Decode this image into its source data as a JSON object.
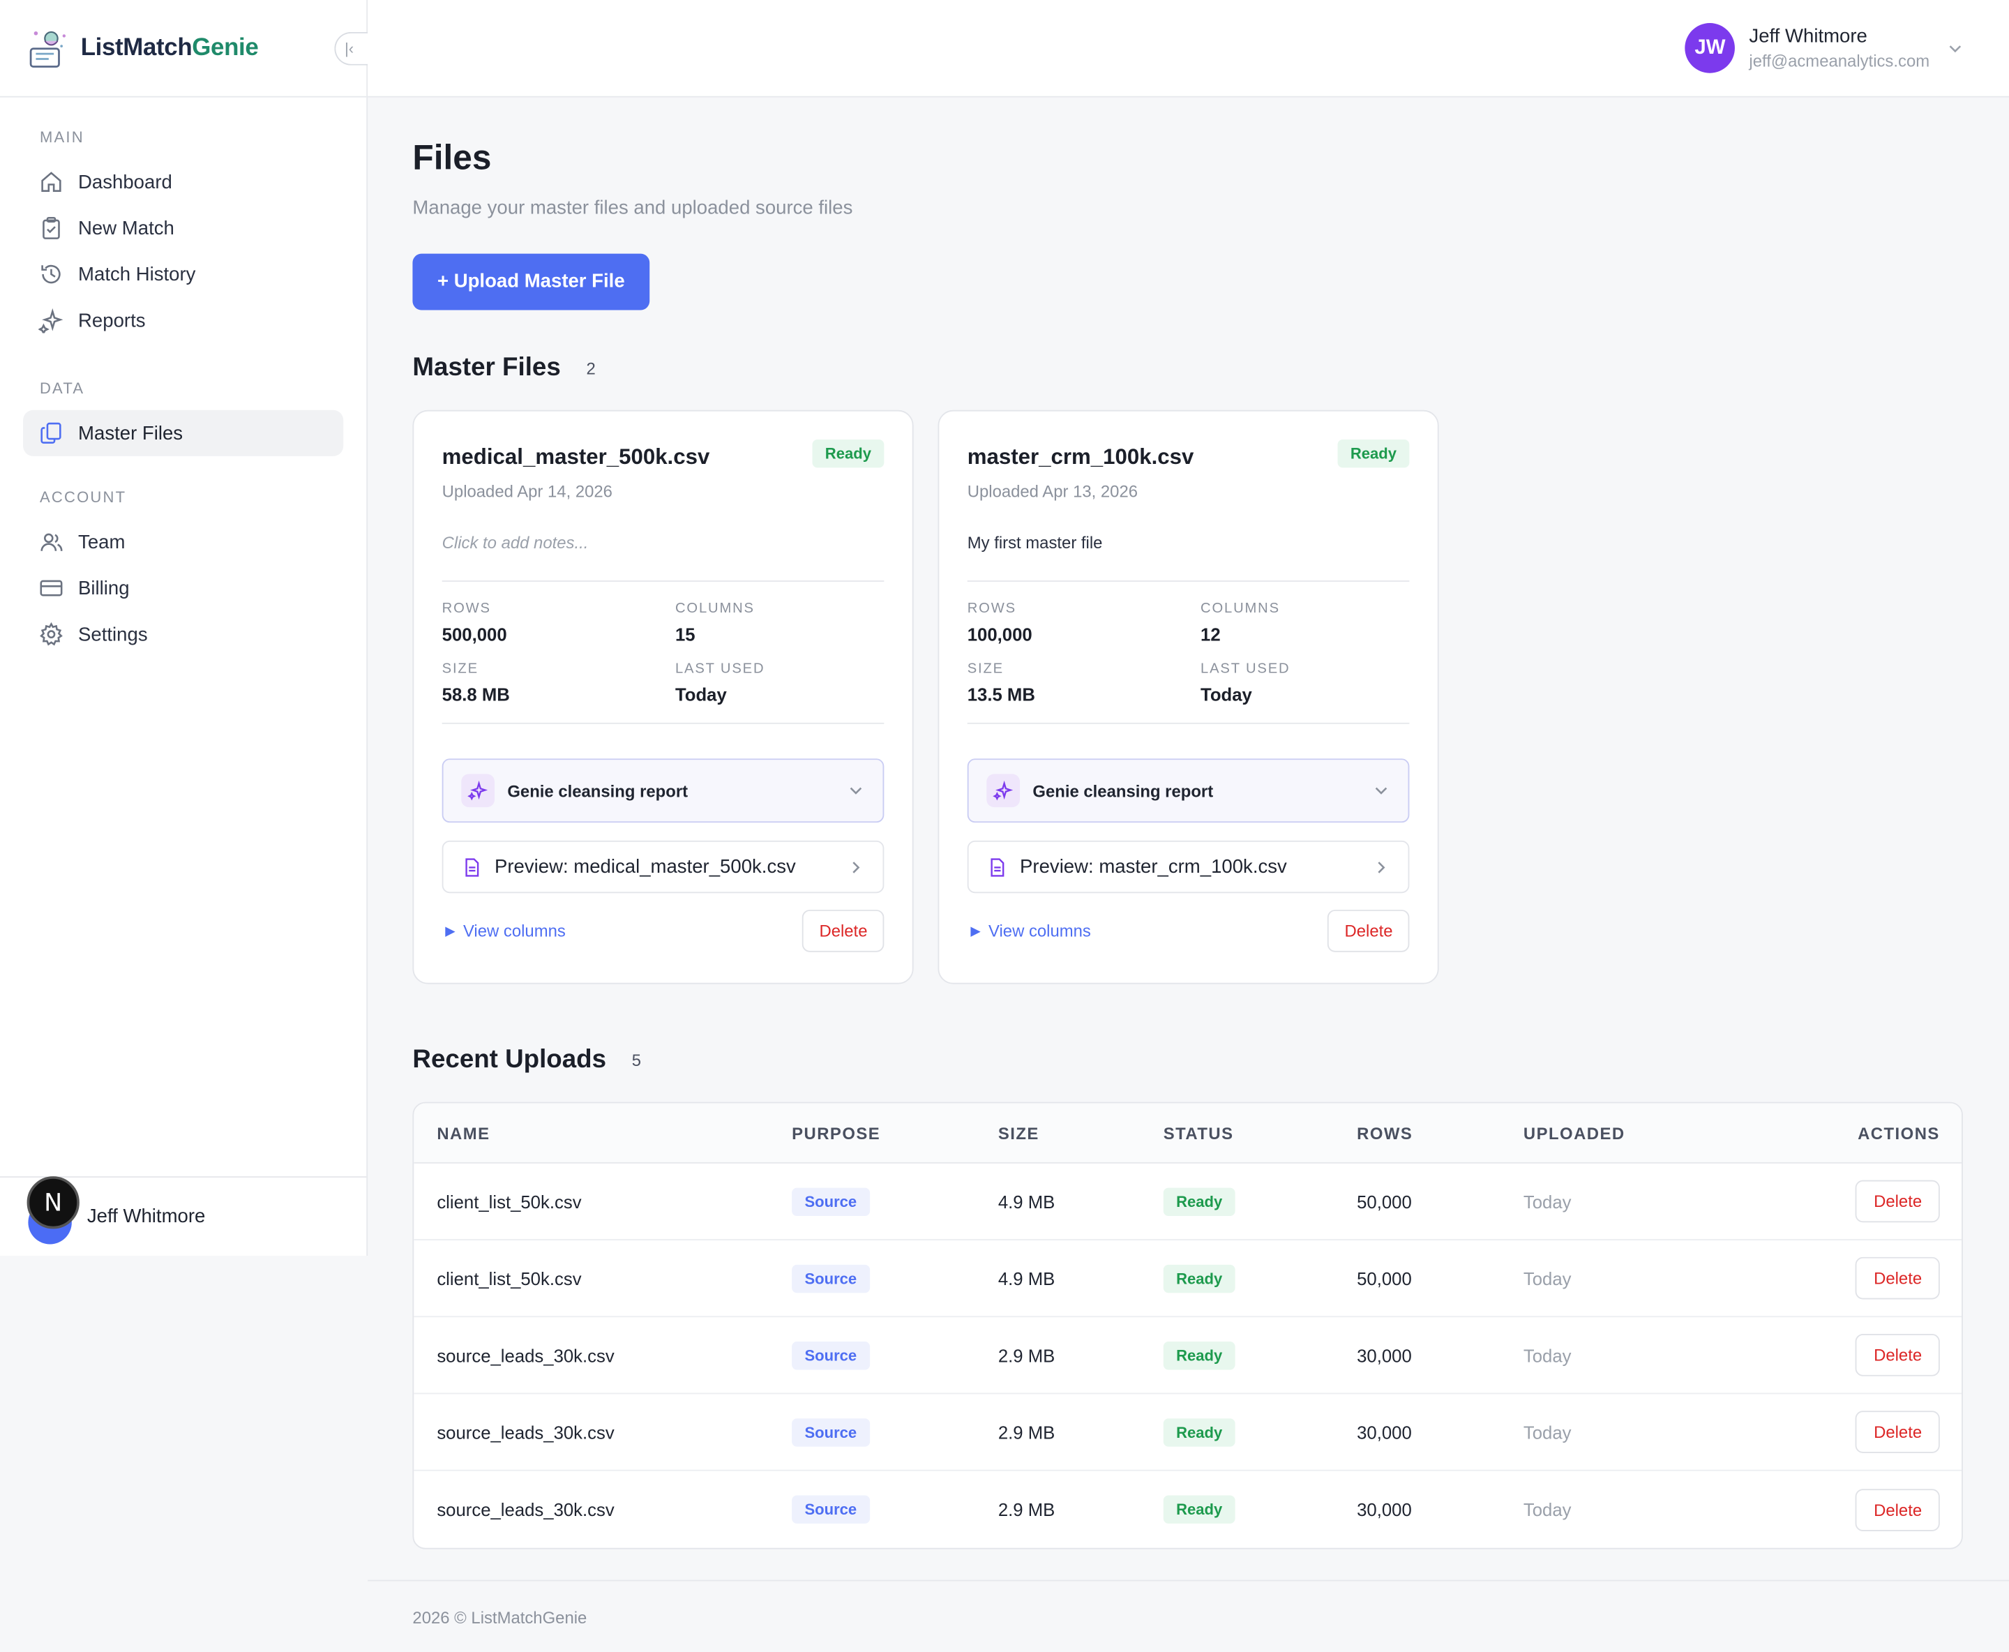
{
  "brand": {
    "name_main": "ListMatch",
    "name_accent": "Genie",
    "collapse_icon": "chevron-left-bar-icon"
  },
  "sidebar": {
    "sections": [
      {
        "heading": "MAIN",
        "items": [
          {
            "label": "Dashboard",
            "icon": "home-icon"
          },
          {
            "label": "New Match",
            "icon": "clipboard-check-icon"
          },
          {
            "label": "Match History",
            "icon": "history-icon"
          },
          {
            "label": "Reports",
            "icon": "sparkles-icon"
          }
        ]
      },
      {
        "heading": "DATA",
        "items": [
          {
            "label": "Master Files",
            "icon": "files-icon",
            "active": true
          }
        ]
      },
      {
        "heading": "ACCOUNT",
        "items": [
          {
            "label": "Team",
            "icon": "users-icon"
          },
          {
            "label": "Billing",
            "icon": "credit-card-icon"
          },
          {
            "label": "Settings",
            "icon": "gear-icon"
          }
        ]
      }
    ],
    "user_name": "Jeff Whitmore",
    "n_badge": "N"
  },
  "topbar": {
    "initials": "JW",
    "user_name": "Jeff Whitmore",
    "user_email": "jeff@acmeanalytics.com",
    "avatar_color": "#7c3aed"
  },
  "page": {
    "title": "Files",
    "subtitle": "Manage your master files and uploaded source files",
    "upload_button": "+ Upload Master File"
  },
  "master_files": {
    "heading": "Master Files",
    "count": "2",
    "cards": [
      {
        "name": "medical_master_500k.csv",
        "status": "Ready",
        "uploaded": "Uploaded Apr 14, 2026",
        "notes": "Click to add notes...",
        "notes_placeholder": true,
        "rows_label": "ROWS",
        "rows": "500,000",
        "columns_label": "COLUMNS",
        "columns": "15",
        "size_label": "SIZE",
        "size": "58.8 MB",
        "last_used_label": "LAST USED",
        "last_used": "Today",
        "report_label": "Genie cleansing report",
        "preview_label": "Preview: medical_master_500k.csv",
        "view_columns": "► View columns",
        "delete_label": "Delete"
      },
      {
        "name": "master_crm_100k.csv",
        "status": "Ready",
        "uploaded": "Uploaded Apr 13, 2026",
        "notes": "My first master file",
        "notes_placeholder": false,
        "rows_label": "ROWS",
        "rows": "100,000",
        "columns_label": "COLUMNS",
        "columns": "12",
        "size_label": "SIZE",
        "size": "13.5 MB",
        "last_used_label": "LAST USED",
        "last_used": "Today",
        "report_label": "Genie cleansing report",
        "preview_label": "Preview: master_crm_100k.csv",
        "view_columns": "► View columns",
        "delete_label": "Delete"
      }
    ]
  },
  "recent_uploads": {
    "heading": "Recent Uploads",
    "count": "5",
    "columns": [
      "NAME",
      "PURPOSE",
      "SIZE",
      "STATUS",
      "ROWS",
      "UPLOADED",
      "ACTIONS"
    ],
    "rows": [
      {
        "name": "client_list_50k.csv",
        "purpose": "Source",
        "size": "4.9 MB",
        "status": "Ready",
        "rows": "50,000",
        "uploaded": "Today",
        "action": "Delete"
      },
      {
        "name": "client_list_50k.csv",
        "purpose": "Source",
        "size": "4.9 MB",
        "status": "Ready",
        "rows": "50,000",
        "uploaded": "Today",
        "action": "Delete"
      },
      {
        "name": "source_leads_30k.csv",
        "purpose": "Source",
        "size": "2.9 MB",
        "status": "Ready",
        "rows": "30,000",
        "uploaded": "Today",
        "action": "Delete"
      },
      {
        "name": "source_leads_30k.csv",
        "purpose": "Source",
        "size": "2.9 MB",
        "status": "Ready",
        "rows": "30,000",
        "uploaded": "Today",
        "action": "Delete"
      },
      {
        "name": "source_leads_30k.csv",
        "purpose": "Source",
        "size": "2.9 MB",
        "status": "Ready",
        "rows": "30,000",
        "uploaded": "Today",
        "action": "Delete"
      }
    ]
  },
  "footer": {
    "text": "2026 © ListMatchGenie"
  },
  "colors": {
    "primary": "#4e6ef2",
    "ready": "#1d9a4d",
    "danger": "#dc2626",
    "brand_accent": "#1f8a6a"
  }
}
